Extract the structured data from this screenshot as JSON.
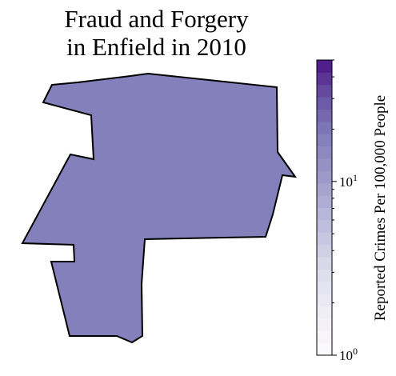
{
  "map": {
    "title_line1": "Fraud and Forgery",
    "title_line2": "in Enfield in 2010",
    "region": "Enfield",
    "year": "2010",
    "region_fill": "#8480bb",
    "region_stroke": "#000000"
  },
  "colorbar": {
    "label": "Reported Crimes Per 100,000 People",
    "scale": "log",
    "colormap": "Purples",
    "range": [
      1,
      50
    ],
    "tick_base": "10",
    "ticks": [
      {
        "exp": "0"
      },
      {
        "exp": "1"
      }
    ],
    "color_low": "#fcfbfd",
    "color_high": "#3f007d"
  }
}
